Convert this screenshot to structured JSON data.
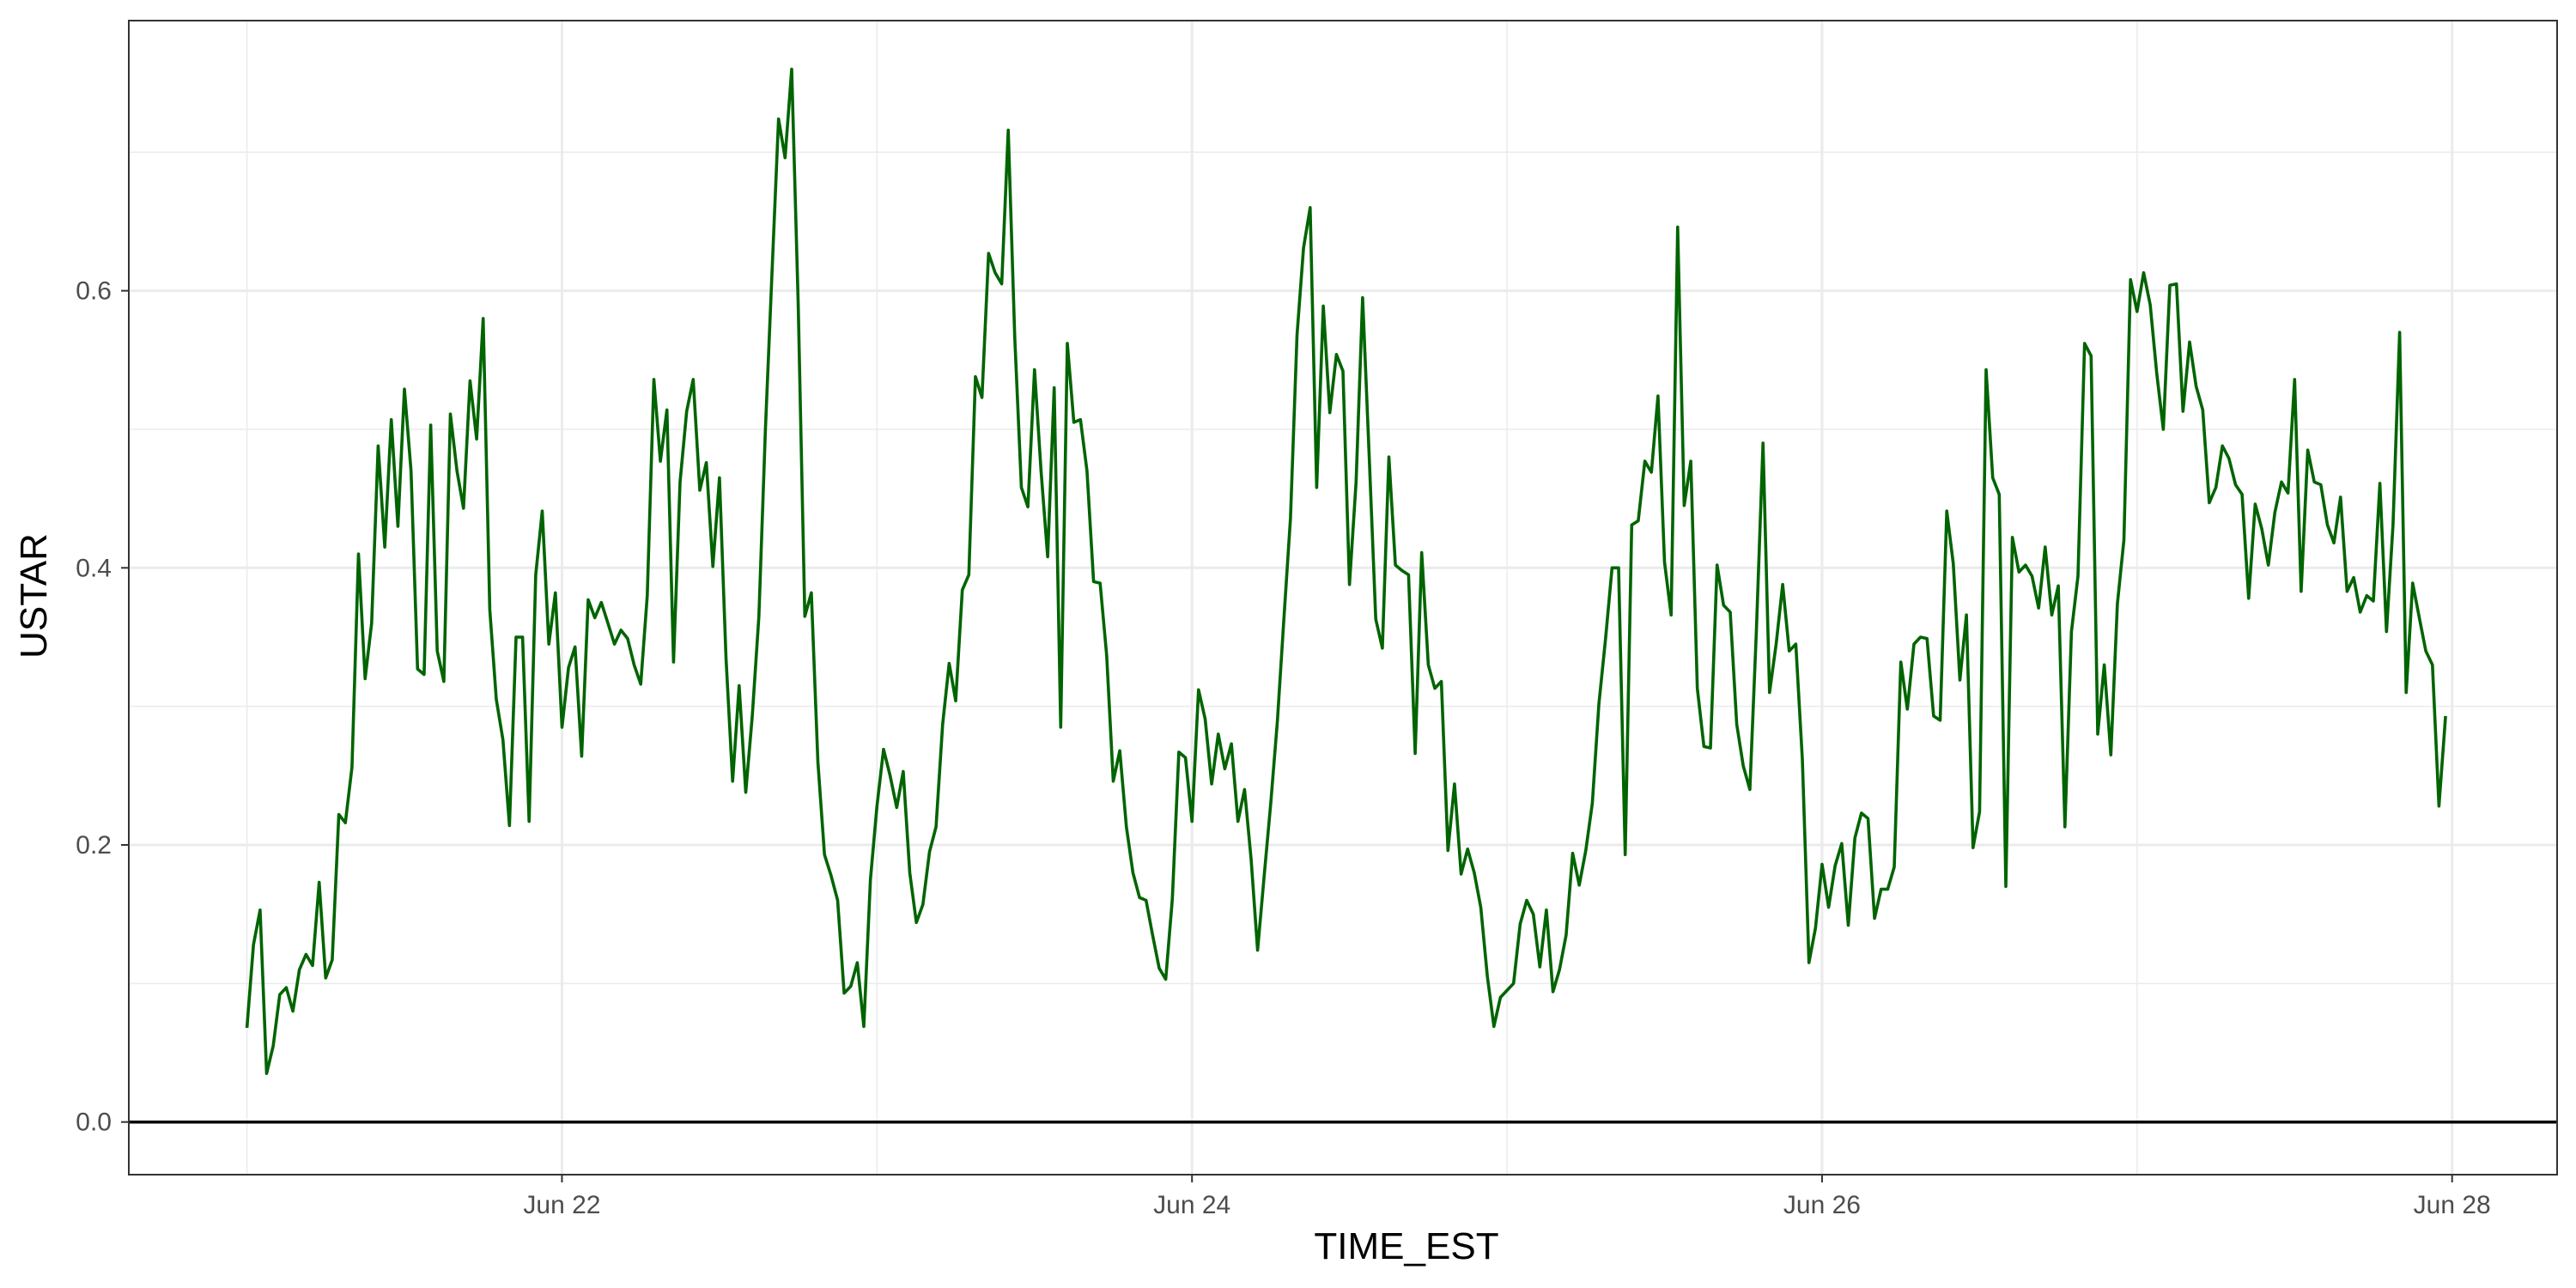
{
  "chart_data": {
    "type": "line",
    "title": "",
    "xlabel": "TIME_EST",
    "ylabel": "USTAR",
    "x_type": "date",
    "x_start": "2021-06-21T00:00",
    "x_end": "2021-06-27T23:30",
    "x_step_hours": 0.5,
    "xlim": [
      "2021-06-20T15:00",
      "2021-06-28T08:00"
    ],
    "ylim": [
      -0.038,
      0.795
    ],
    "x_ticks": [
      {
        "value": "2021-06-22T00:00",
        "label": "Jun 22"
      },
      {
        "value": "2021-06-24T00:00",
        "label": "Jun 24"
      },
      {
        "value": "2021-06-26T00:00",
        "label": "Jun 26"
      },
      {
        "value": "2021-06-28T00:00",
        "label": "Jun 28"
      }
    ],
    "y_ticks": [
      {
        "value": 0.0,
        "label": "0.0"
      },
      {
        "value": 0.2,
        "label": "0.2"
      },
      {
        "value": 0.4,
        "label": "0.4"
      },
      {
        "value": 0.6,
        "label": "0.6"
      }
    ],
    "hline": 0,
    "grid": true,
    "legend": "none",
    "colors": {
      "line": "#006400",
      "grid": "#ebebeb",
      "panel_border": "#333333",
      "background": "#ffffff",
      "hline": "#000000"
    },
    "series": [
      {
        "values": [
          0.068,
          0.128,
          0.153,
          0.035,
          0.055,
          0.092,
          0.097,
          0.08,
          0.11,
          0.121,
          0.113,
          0.173,
          0.104,
          0.117,
          0.222,
          0.216,
          0.256,
          0.41,
          0.32,
          0.36,
          0.488,
          0.415,
          0.507,
          0.43,
          0.529,
          0.47,
          0.327,
          0.323,
          0.503,
          0.34,
          0.318,
          0.511,
          0.47,
          0.443,
          0.535,
          0.493,
          0.58,
          0.37,
          0.305,
          0.276,
          0.214,
          0.35,
          0.35,
          0.217,
          0.395,
          0.441,
          0.345,
          0.382,
          0.285,
          0.328,
          0.343,
          0.264,
          0.377,
          0.364,
          0.375,
          0.36,
          0.345,
          0.355,
          0.349,
          0.33,
          0.316,
          0.38,
          0.536,
          0.477,
          0.514,
          0.332,
          0.462,
          0.513,
          0.536,
          0.456,
          0.476,
          0.401,
          0.465,
          0.335,
          0.246,
          0.315,
          0.238,
          0.293,
          0.365,
          0.5,
          0.612,
          0.724,
          0.696,
          0.76,
          0.59,
          0.365,
          0.382,
          0.26,
          0.193,
          0.178,
          0.16,
          0.093,
          0.098,
          0.115,
          0.069,
          0.175,
          0.228,
          0.269,
          0.25,
          0.227,
          0.253,
          0.18,
          0.144,
          0.157,
          0.195,
          0.213,
          0.287,
          0.331,
          0.304,
          0.384,
          0.395,
          0.538,
          0.523,
          0.627,
          0.613,
          0.605,
          0.716,
          0.566,
          0.458,
          0.444,
          0.543,
          0.47,
          0.408,
          0.53,
          0.285,
          0.562,
          0.505,
          0.507,
          0.47,
          0.39,
          0.389,
          0.337,
          0.246,
          0.268,
          0.213,
          0.18,
          0.162,
          0.16,
          0.135,
          0.111,
          0.103,
          0.161,
          0.267,
          0.263,
          0.217,
          0.312,
          0.291,
          0.244,
          0.28,
          0.255,
          0.273,
          0.217,
          0.24,
          0.19,
          0.124,
          0.178,
          0.23,
          0.289,
          0.363,
          0.436,
          0.568,
          0.631,
          0.66,
          0.458,
          0.589,
          0.512,
          0.554,
          0.542,
          0.388,
          0.462,
          0.595,
          0.48,
          0.363,
          0.342,
          0.48,
          0.402,
          0.398,
          0.395,
          0.266,
          0.411,
          0.33,
          0.313,
          0.318,
          0.196,
          0.244,
          0.179,
          0.197,
          0.18,
          0.155,
          0.105,
          0.069,
          0.09,
          0.095,
          0.1,
          0.143,
          0.16,
          0.15,
          0.112,
          0.153,
          0.094,
          0.11,
          0.135,
          0.194,
          0.171,
          0.196,
          0.23,
          0.302,
          0.348,
          0.4,
          0.4,
          0.193,
          0.431,
          0.434,
          0.477,
          0.469,
          0.524,
          0.404,
          0.366,
          0.646,
          0.445,
          0.477,
          0.313,
          0.271,
          0.27,
          0.402,
          0.373,
          0.368,
          0.287,
          0.257,
          0.24,
          0.355,
          0.49,
          0.31,
          0.345,
          0.388,
          0.34,
          0.345,
          0.262,
          0.115,
          0.14,
          0.186,
          0.155,
          0.185,
          0.201,
          0.142,
          0.205,
          0.223,
          0.219,
          0.147,
          0.168,
          0.168,
          0.184,
          0.332,
          0.298,
          0.345,
          0.35,
          0.349,
          0.293,
          0.29,
          0.441,
          0.403,
          0.319,
          0.366,
          0.198,
          0.224,
          0.543,
          0.465,
          0.453,
          0.17,
          0.422,
          0.397,
          0.402,
          0.394,
          0.371,
          0.415,
          0.366,
          0.387,
          0.213,
          0.354,
          0.394,
          0.562,
          0.553,
          0.28,
          0.33,
          0.265,
          0.374,
          0.42,
          0.608,
          0.585,
          0.613,
          0.59,
          0.54,
          0.5,
          0.604,
          0.605,
          0.513,
          0.563,
          0.531,
          0.514,
          0.447,
          0.458,
          0.488,
          0.479,
          0.46,
          0.453,
          0.378,
          0.446,
          0.428,
          0.402,
          0.44,
          0.462,
          0.454,
          0.536,
          0.383,
          0.485,
          0.462,
          0.46,
          0.431,
          0.418,
          0.451,
          0.383,
          0.393,
          0.368,
          0.38,
          0.376,
          0.461,
          0.354,
          0.431,
          0.57,
          0.31,
          0.389,
          0.364,
          0.34,
          0.33,
          0.228,
          0.293
        ]
      }
    ]
  }
}
